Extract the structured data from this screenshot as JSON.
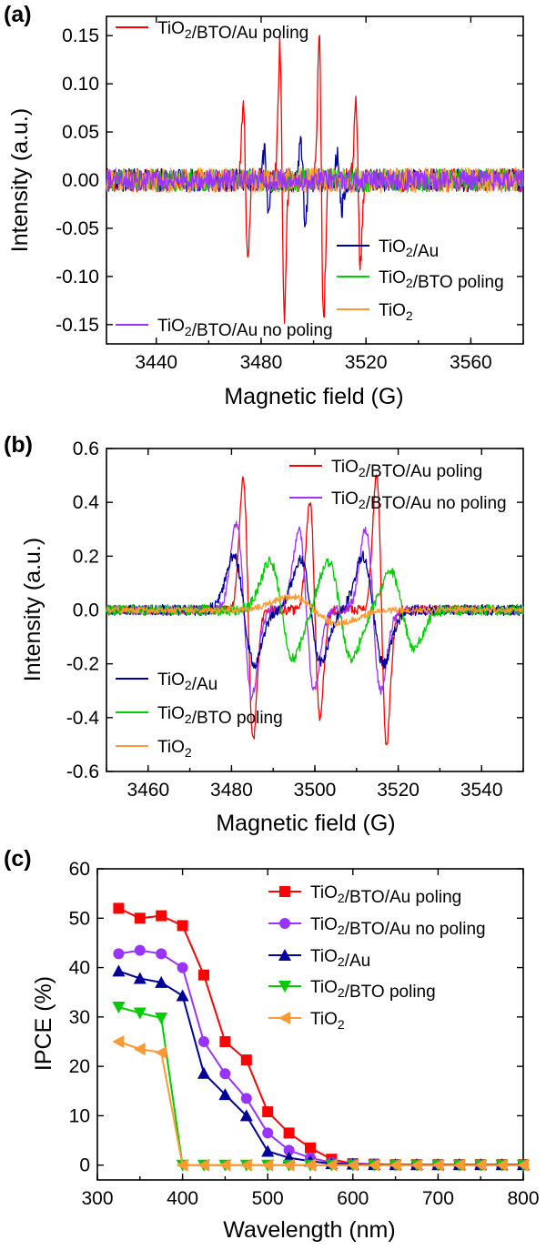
{
  "chart_data": [
    {
      "panel": "(a)",
      "type": "line",
      "xlabel": "Magnetic field (G)",
      "ylabel": "Intensity (a.u.)",
      "xlim": [
        3421,
        3580
      ],
      "ylim": [
        -0.17,
        0.17
      ],
      "xticks": [
        "3440",
        "3480",
        "3520",
        "3560"
      ],
      "yticks": [
        "-0.15",
        "-0.10",
        "-0.05",
        "0.00",
        "0.05",
        "0.10",
        "0.15"
      ],
      "legend": [
        {
          "name": "TiO2/BTO/Au poling",
          "position": "top-left"
        },
        {
          "name": "TiO2/Au",
          "position": "bottom-right"
        },
        {
          "name": "TiO2/BTO poling",
          "position": "bottom-right"
        },
        {
          "name": "TiO2",
          "position": "bottom-right"
        },
        {
          "name": "TiO2/BTO/Au no poling",
          "position": "bottom-left"
        }
      ],
      "series": [
        {
          "name": "TiO2/BTO/Au poling",
          "color": "#ff0000",
          "noise": 0.012,
          "peaks": [
            {
              "x": 3474,
              "a": 0.08
            },
            {
              "x": 3488,
              "a": 0.14
            },
            {
              "x": 3503,
              "a": 0.145
            },
            {
              "x": 3517,
              "a": 0.085
            }
          ]
        },
        {
          "name": "TiO2/Au",
          "color": "#000099",
          "noise": 0.012,
          "peaks": [
            {
              "x": 3482,
              "a": 0.03
            },
            {
              "x": 3496,
              "a": 0.04
            },
            {
              "x": 3510,
              "a": 0.03
            }
          ]
        },
        {
          "name": "TiO2/BTO poling",
          "color": "#00cc00",
          "noise": 0.012,
          "peaks": []
        },
        {
          "name": "TiO2",
          "color": "#ff9933",
          "noise": 0.013,
          "peaks": []
        },
        {
          "name": "TiO2/BTO/Au no poling",
          "color": "#9933ff",
          "noise": 0.011,
          "peaks": []
        }
      ]
    },
    {
      "panel": "(b)",
      "type": "line",
      "xlabel": "Magnetic field (G)",
      "ylabel": "Intensity (a.u.)",
      "xlim": [
        3450,
        3550
      ],
      "ylim": [
        -0.6,
        0.6
      ],
      "xticks": [
        "3460",
        "3480",
        "3500",
        "3520",
        "3540"
      ],
      "yticks": [
        "-0.6",
        "-0.4",
        "-0.2",
        "0.0",
        "0.2",
        "0.4",
        "0.6"
      ],
      "legend": [
        {
          "name": "TiO2/BTO/Au poling",
          "position": "top-right"
        },
        {
          "name": "TiO2/BTO/Au no poling",
          "position": "top-right"
        },
        {
          "name": "TiO2/Au",
          "position": "bottom-left"
        },
        {
          "name": "TiO2/BTO poling",
          "position": "bottom-left"
        },
        {
          "name": "TiO2",
          "position": "bottom-left"
        }
      ],
      "series": [
        {
          "name": "TiO2/BTO/Au poling",
          "color": "#ff0000",
          "noise": 0.018,
          "peaks": [
            {
              "x": 3484,
              "a": 0.48,
              "w": 1.7
            },
            {
              "x": 3500,
              "a": 0.4,
              "w": 1.7
            },
            {
              "x": 3516,
              "a": 0.5,
              "w": 1.7
            }
          ]
        },
        {
          "name": "TiO2/BTO/Au no poling",
          "color": "#9933ff",
          "noise": 0.018,
          "peaks": [
            {
              "x": 3483,
              "a": 0.32,
              "w": 2.6
            },
            {
              "x": 3498,
              "a": 0.3,
              "w": 2.6
            },
            {
              "x": 3514,
              "a": 0.3,
              "w": 2.6
            }
          ]
        },
        {
          "name": "TiO2/Au",
          "color": "#000099",
          "noise": 0.02,
          "peaks": [
            {
              "x": 3483,
              "a": 0.2,
              "w": 3.5
            },
            {
              "x": 3499,
              "a": 0.19,
              "w": 3.5
            },
            {
              "x": 3514,
              "a": 0.2,
              "w": 3.5
            }
          ]
        },
        {
          "name": "TiO2/BTO poling",
          "color": "#00cc00",
          "noise": 0.02,
          "peaks": [
            {
              "x": 3492,
              "a": 0.18,
              "w": 4.0
            },
            {
              "x": 3506,
              "a": 0.18,
              "w": 4.0
            },
            {
              "x": 3521,
              "a": 0.14,
              "w": 4.0
            }
          ]
        },
        {
          "name": "TiO2",
          "color": "#ff9933",
          "noise": 0.012,
          "peaks": [
            {
              "x": 3500,
              "a": 0.05,
              "w": 8
            }
          ]
        }
      ]
    },
    {
      "panel": "(c)",
      "type": "line",
      "xlabel": "Wavelength (nm)",
      "ylabel": "IPCE (%)",
      "xlim": [
        300,
        800
      ],
      "ylim": [
        -3,
        60
      ],
      "xticks": [
        "300",
        "400",
        "500",
        "600",
        "700",
        "800"
      ],
      "yticks": [
        "0",
        "10",
        "20",
        "30",
        "40",
        "50",
        "60"
      ],
      "x": [
        325,
        350,
        375,
        400,
        425,
        450,
        475,
        500,
        525,
        550,
        575,
        600,
        625,
        650,
        675,
        700,
        725,
        750,
        775,
        800
      ],
      "legend": [
        {
          "name": "TiO2/BTO/Au poling",
          "position": "top-right"
        },
        {
          "name": "TiO2/BTO/Au no poling",
          "position": "top-right"
        },
        {
          "name": "TiO2/Au",
          "position": "top-right"
        },
        {
          "name": "TiO2/BTO poling",
          "position": "top-right"
        },
        {
          "name": "TiO2",
          "position": "top-right"
        }
      ],
      "series": [
        {
          "name": "TiO2/BTO/Au poling",
          "color": "#ff0000",
          "marker": "square",
          "values": [
            52,
            50,
            50.5,
            48.5,
            38.5,
            25,
            21.3,
            10.8,
            6.5,
            3.5,
            1.2,
            0.3,
            0.2,
            0.1,
            0.1,
            0.1,
            0.1,
            0.1,
            0.1,
            0.1
          ]
        },
        {
          "name": "TiO2/BTO/Au no poling",
          "color": "#9933ff",
          "marker": "circle",
          "values": [
            42.8,
            43.5,
            42.8,
            40,
            25,
            18.5,
            13.5,
            6.5,
            3,
            1.5,
            0.5,
            0.3,
            0.2,
            0.1,
            0.1,
            0.1,
            0.1,
            0.1,
            0.1,
            0.1
          ]
        },
        {
          "name": "TiO2/Au",
          "color": "#000099",
          "marker": "triangle-up",
          "values": [
            39.3,
            37.8,
            37,
            34.3,
            18.6,
            14.3,
            10,
            2.8,
            1.5,
            0.8,
            0.3,
            0.2,
            0.1,
            0.1,
            0.1,
            0.1,
            0.1,
            0.1,
            0.1,
            0.1
          ]
        },
        {
          "name": "TiO2/BTO poling",
          "color": "#00cc00",
          "marker": "triangle-down",
          "values": [
            32,
            30.8,
            29.8,
            0,
            0,
            0,
            0,
            0,
            0,
            0,
            0,
            0,
            0,
            0,
            0,
            0,
            0,
            0,
            0,
            0
          ]
        },
        {
          "name": "TiO2",
          "color": "#ff9933",
          "marker": "triangle-left",
          "values": [
            25,
            23.5,
            22.8,
            0,
            0,
            0,
            0,
            0,
            0,
            0,
            0,
            0,
            0,
            0,
            0,
            0,
            0,
            0,
            0,
            0
          ]
        }
      ]
    }
  ]
}
